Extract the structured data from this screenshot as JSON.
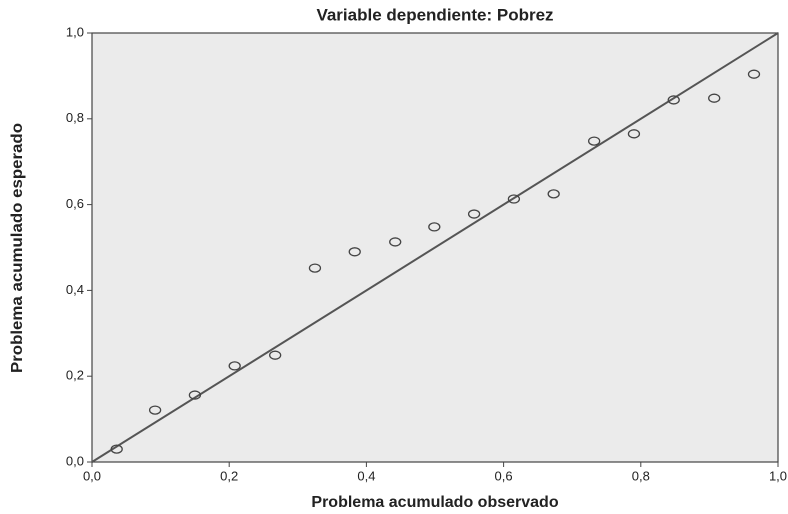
{
  "chart_data": {
    "type": "scatter",
    "title": "Variable dependiente: Pobrez",
    "x_label": "Problema acumulado observado",
    "y_label": "Problema acumulado esperado",
    "x": [
      0.036,
      0.092,
      0.15,
      0.208,
      0.267,
      0.325,
      0.383,
      0.442,
      0.499,
      0.557,
      0.615,
      0.673,
      0.732,
      0.79,
      0.848,
      0.907,
      0.965
    ],
    "y": [
      0.03,
      0.121,
      0.156,
      0.224,
      0.249,
      0.452,
      0.49,
      0.513,
      0.548,
      0.578,
      0.613,
      0.625,
      0.748,
      0.765,
      0.844,
      0.848,
      0.904
    ],
    "color": "#444444",
    "xlim": [
      0,
      1
    ],
    "ylim": [
      0,
      1
    ],
    "xticks": [
      {
        "value": 0,
        "label": "0,0"
      },
      {
        "value": 0.2,
        "label": "0,2"
      },
      {
        "value": 0.4,
        "label": "0,4"
      },
      {
        "value": 0.6,
        "label": "0,6"
      },
      {
        "value": 0.8,
        "label": "0,8"
      },
      {
        "value": 1,
        "label": "1,0"
      }
    ],
    "yticks": [
      {
        "value": 0,
        "label": "0,0"
      },
      {
        "value": 0.2,
        "label": "0,2"
      },
      {
        "value": 0.4,
        "label": "0,4"
      },
      {
        "value": 0.6,
        "label": "0,6"
      },
      {
        "value": 0.8,
        "label": "0,8"
      },
      {
        "value": 1,
        "label": "1,0"
      }
    ]
  }
}
